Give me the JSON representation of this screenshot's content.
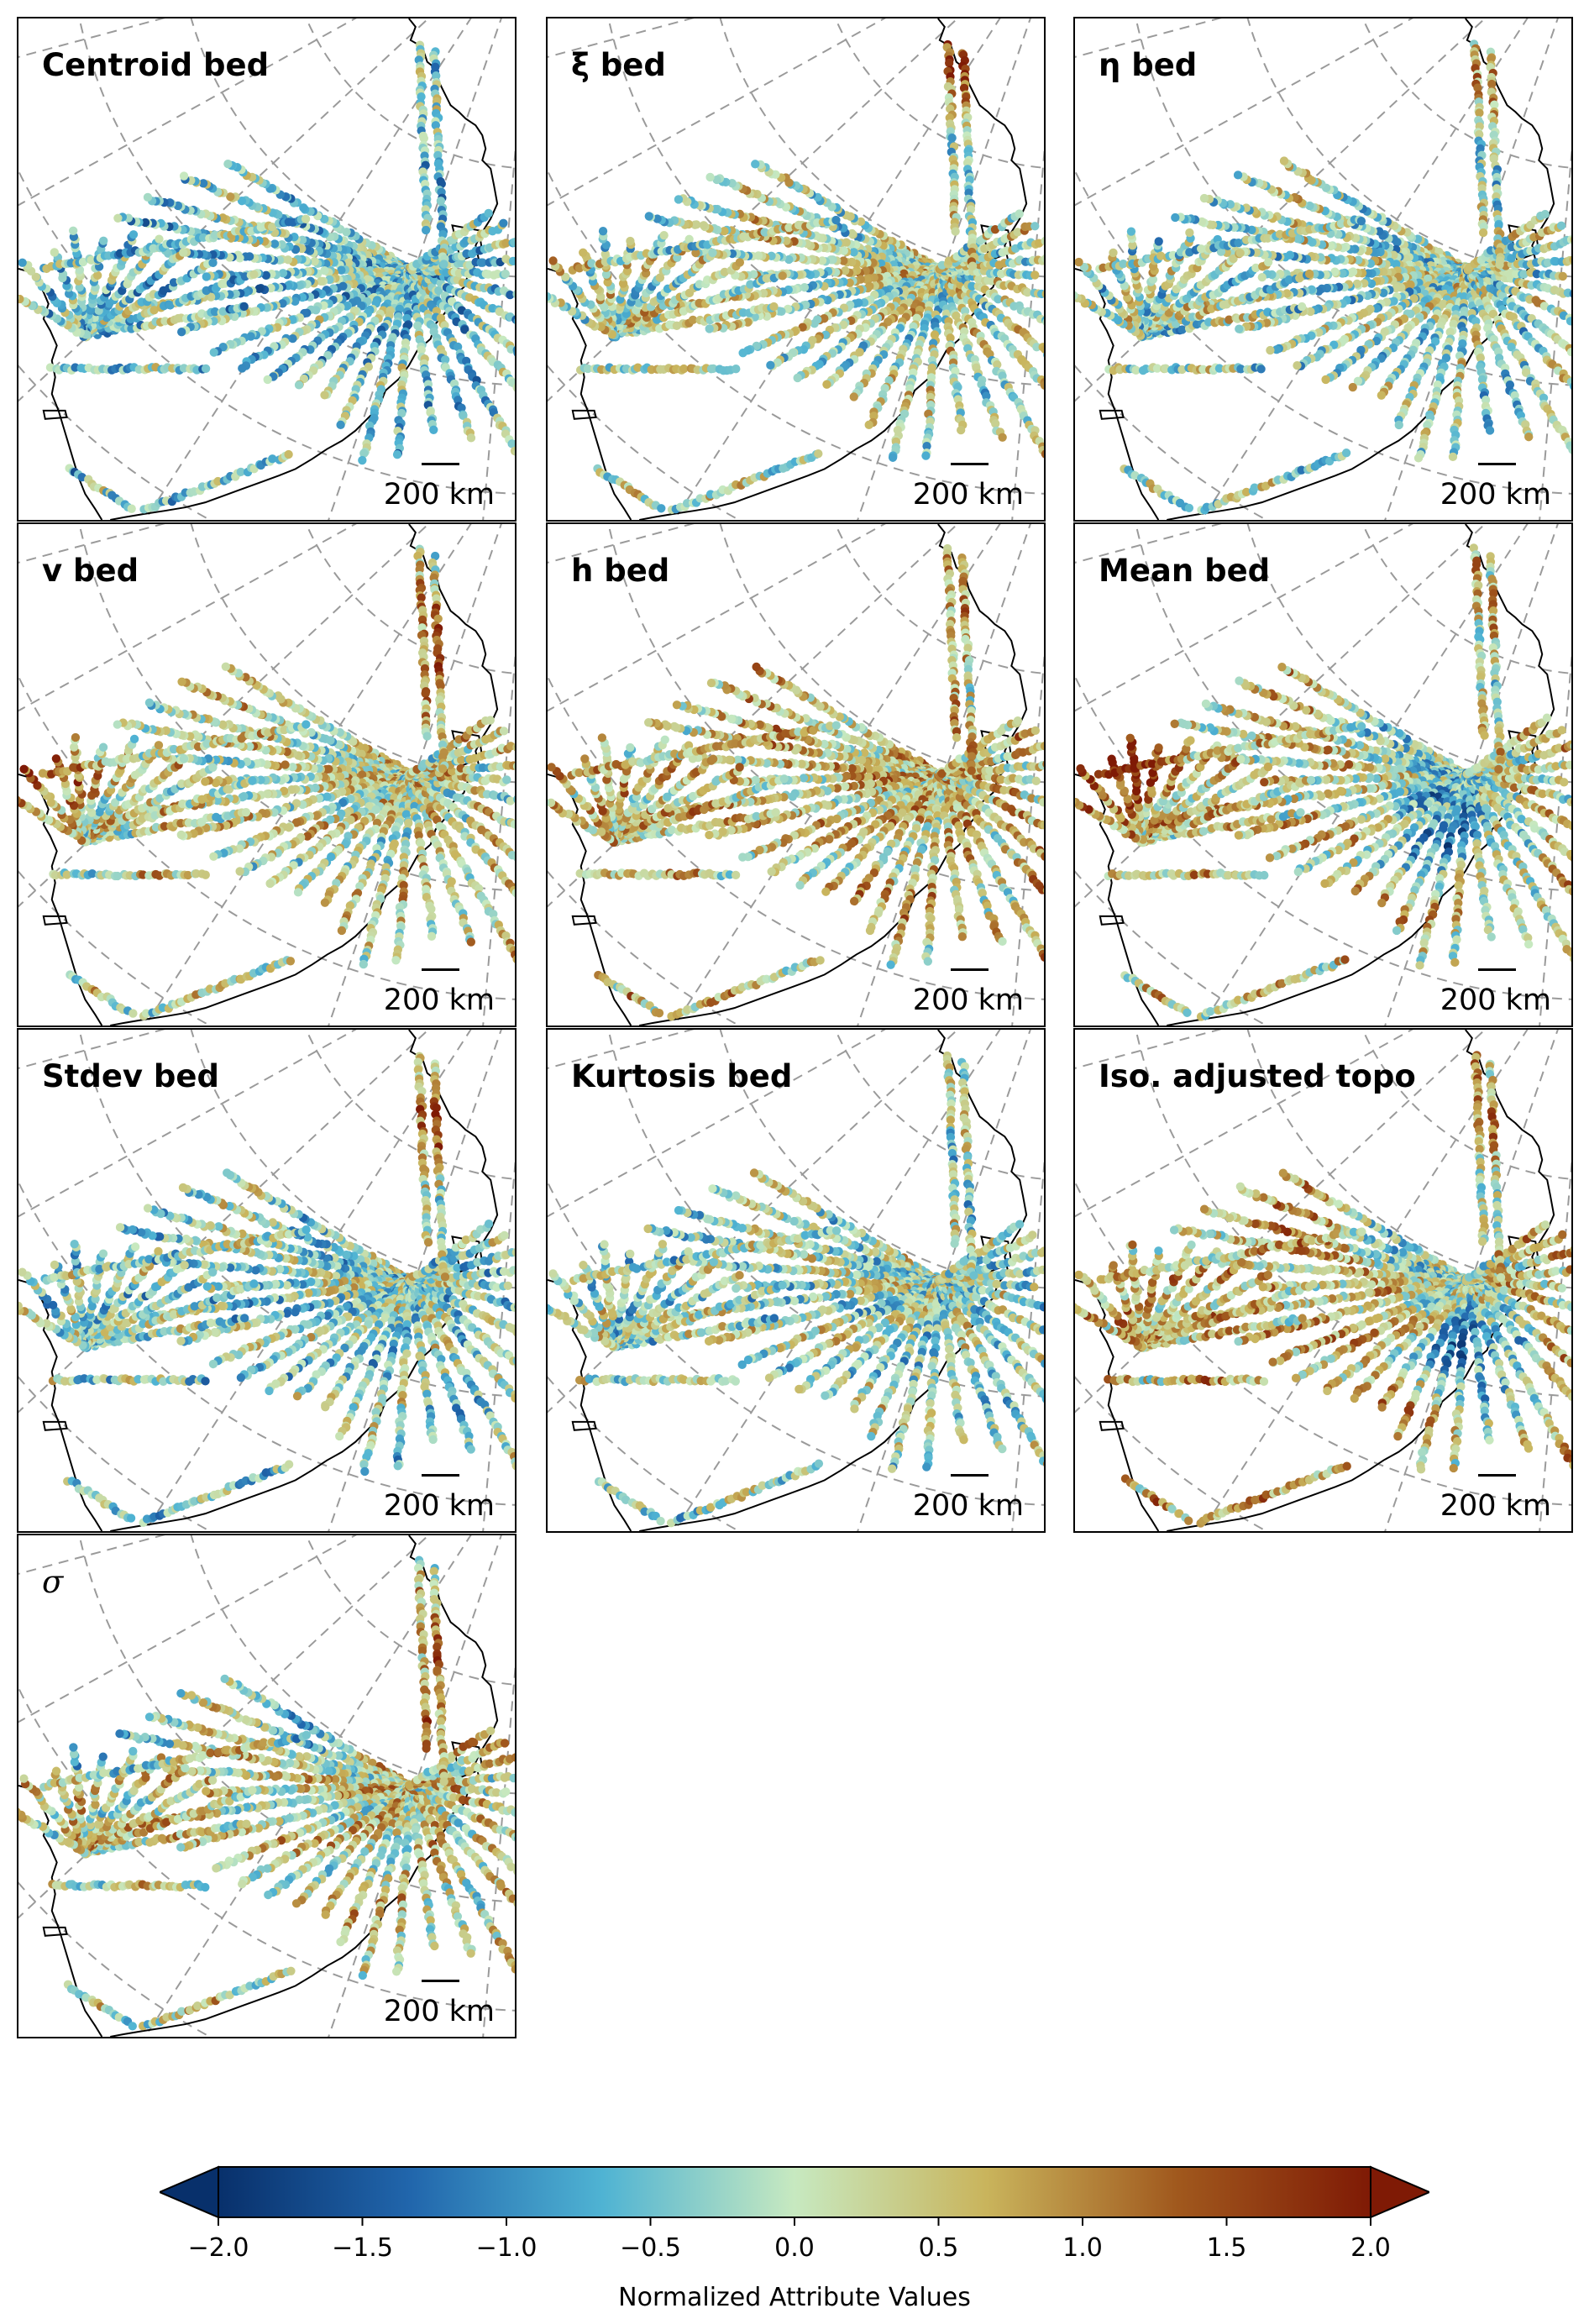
{
  "panels": [
    {
      "title": "Centroid bed",
      "italic": false,
      "scale_label": "200 km"
    },
    {
      "title": "ξ bed",
      "italic": false,
      "scale_label": "200 km"
    },
    {
      "title": "η bed",
      "italic": false,
      "scale_label": "200 km"
    },
    {
      "title": "v bed",
      "italic": false,
      "scale_label": "200 km"
    },
    {
      "title": "h bed",
      "italic": false,
      "scale_label": "200 km"
    },
    {
      "title": "Mean bed",
      "italic": false,
      "scale_label": "200 km"
    },
    {
      "title": "Stdev bed",
      "italic": false,
      "scale_label": "200 km"
    },
    {
      "title": "Kurtosis bed",
      "italic": false,
      "scale_label": "200 km"
    },
    {
      "title": "Iso. adjusted topo",
      "italic": false,
      "scale_label": "200 km"
    },
    {
      "title": "σ",
      "italic": true,
      "scale_label": "200 km"
    }
  ],
  "colorbar": {
    "label": "Normalized Attribute Values",
    "min": -2.0,
    "max": 2.0,
    "ticks": [
      "−2.0",
      "−1.5",
      "−1.0",
      "−0.5",
      "0.0",
      "0.5",
      "1.0",
      "1.5",
      "2.0"
    ],
    "tick_values": [
      -2.0,
      -1.5,
      -1.0,
      -0.5,
      0.0,
      0.5,
      1.0,
      1.5,
      2.0
    ],
    "extend": "both",
    "colors": [
      "#08306b",
      "#2166ac",
      "#4fb3d3",
      "#c7e9c0",
      "#c9b45c",
      "#a0581d",
      "#7f1a05"
    ]
  },
  "map_colors": {
    "coast": "#000000",
    "graticule": "#9a9a9a"
  }
}
